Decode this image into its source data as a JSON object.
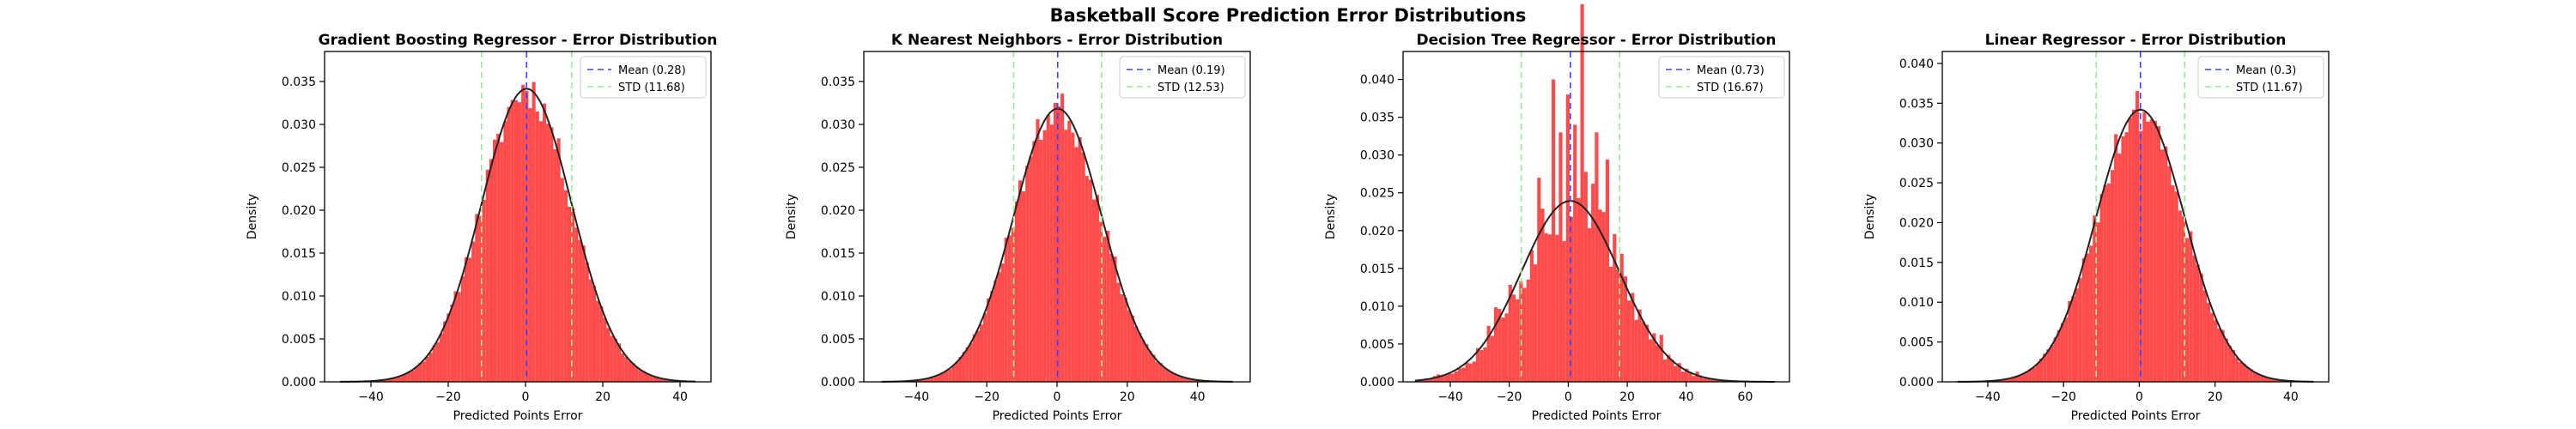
{
  "figure": {
    "title": "Basketball Score Prediction Error Distributions"
  },
  "colors": {
    "bars": "#ff4b4b",
    "mean_line": "#4040ff",
    "std_line": "#90ee90",
    "fit_curve": "#222222"
  },
  "chart_data": [
    {
      "type": "histogram",
      "title": "Gradient Boosting Regressor - Error Distribution",
      "xlabel": "Predicted Points Error",
      "ylabel": "Density",
      "xlim": [
        -52,
        48
      ],
      "ylim": [
        0,
        0.0385
      ],
      "xticks": [
        -40,
        -20,
        0,
        20,
        40
      ],
      "yticks": [
        0,
        0.005,
        0.01,
        0.015,
        0.02,
        0.025,
        0.03,
        0.035
      ],
      "mean": 0.28,
      "std": 11.68,
      "hist_range": [
        -48,
        44
      ],
      "bins": 100,
      "noise": 0.07,
      "seed": 11,
      "legend": {
        "placement": "upper-right",
        "entries": [
          "Mean (0.28)",
          "STD (11.68)"
        ]
      }
    },
    {
      "type": "histogram",
      "title": "K Nearest Neighbors - Error Distribution",
      "xlabel": "Predicted Points Error",
      "ylabel": "Density",
      "xlim": [
        -55,
        55
      ],
      "ylim": [
        0,
        0.0385
      ],
      "xticks": [
        -40,
        -20,
        0,
        20,
        40
      ],
      "yticks": [
        0,
        0.005,
        0.01,
        0.015,
        0.02,
        0.025,
        0.03,
        0.035
      ],
      "mean": 0.19,
      "std": 12.53,
      "hist_range": [
        -50,
        50
      ],
      "bins": 100,
      "noise": 0.07,
      "seed": 23,
      "legend": {
        "placement": "upper-right",
        "entries": [
          "Mean (0.19)",
          "STD (12.53)"
        ]
      }
    },
    {
      "type": "histogram",
      "title": "Decision Tree Regressor - Error Distribution",
      "xlabel": "Predicted Points Error",
      "ylabel": "Density",
      "xlim": [
        -56,
        75
      ],
      "ylim": [
        0,
        0.0437
      ],
      "xticks": [
        -40,
        -20,
        0,
        20,
        40,
        60
      ],
      "yticks": [
        0,
        0.005,
        0.01,
        0.015,
        0.02,
        0.025,
        0.03,
        0.035,
        0.04
      ],
      "mean": 0.73,
      "std": 16.67,
      "hist_range": [
        -52,
        70
      ],
      "bins": 100,
      "noise": 0.25,
      "spikes": [
        [
          -5,
          0.04
        ],
        [
          0,
          0.038
        ],
        [
          5,
          0.037
        ],
        [
          10,
          0.033
        ],
        [
          -10,
          0.027
        ],
        [
          2,
          0.034
        ],
        [
          -2,
          0.033
        ]
      ],
      "seed": 37,
      "legend": {
        "placement": "upper-right",
        "entries": [
          "Mean (0.73)",
          "STD (16.67)"
        ]
      }
    },
    {
      "type": "histogram",
      "title": "Linear Regressor - Error Distribution",
      "xlabel": "Predicted Points Error",
      "ylabel": "Density",
      "xlim": [
        -52,
        50
      ],
      "ylim": [
        0,
        0.0415
      ],
      "xticks": [
        -40,
        -20,
        0,
        20,
        40
      ],
      "yticks": [
        0,
        0.005,
        0.01,
        0.015,
        0.02,
        0.025,
        0.03,
        0.035,
        0.04
      ],
      "mean": 0.3,
      "std": 11.67,
      "hist_range": [
        -48,
        46
      ],
      "bins": 100,
      "noise": 0.08,
      "seed": 51,
      "legend": {
        "placement": "upper-right",
        "entries": [
          "Mean (0.3)",
          "STD (11.67)"
        ]
      }
    }
  ]
}
